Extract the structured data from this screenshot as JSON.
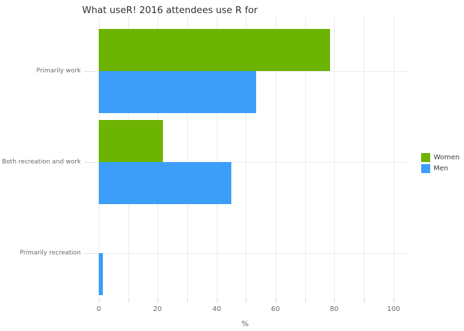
{
  "chart_data": {
    "type": "bar",
    "orientation": "horizontal",
    "title": "What useR! 2016 attendees use R for",
    "xlabel": "%",
    "ylabel": "",
    "categories": [
      "Primarily work",
      "Both recreation and work",
      "Primarily recreation"
    ],
    "series": [
      {
        "name": "Women",
        "color": "#6db302",
        "values": [
          78.6,
          21.8,
          0
        ]
      },
      {
        "name": "Men",
        "color": "#3d9efa",
        "values": [
          53.5,
          45.1,
          1.5
        ]
      }
    ],
    "xlim": [
      0,
      105
    ],
    "x_ticks_labeled": [
      0,
      20,
      40,
      60,
      80,
      100
    ],
    "x_grid_step": 10,
    "grid": true,
    "legend_position": "right"
  },
  "colors": {
    "background": "#ffffff",
    "gridline": "#ececec",
    "tick": "#d9d9d9",
    "axis_text": "#696969",
    "title_text": "#2f2f2f",
    "legend_text": "#3d3d3d"
  }
}
